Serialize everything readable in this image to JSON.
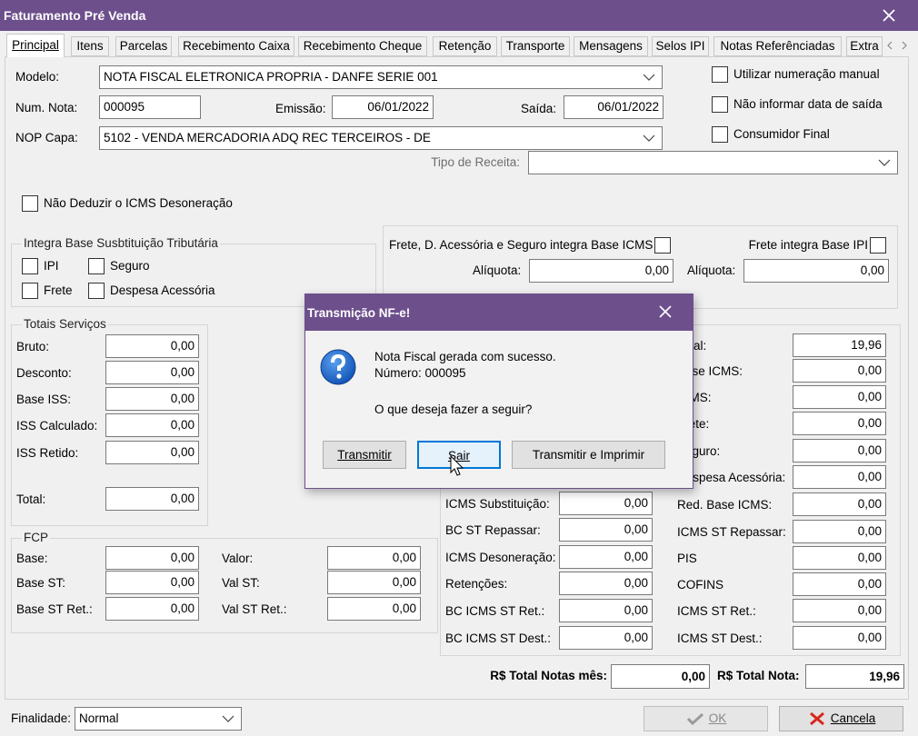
{
  "window": {
    "title": "Faturamento Pré Venda"
  },
  "tabs": [
    "Principal",
    "Itens",
    "Parcelas",
    "Recebimento Caixa",
    "Recebimento Cheque",
    "Retenção",
    "Transporte",
    "Mensagens",
    "Selos IPI",
    "Notas Referênciadas",
    "Extra"
  ],
  "form": {
    "modelo": {
      "label": "Modelo:",
      "value": "NOTA FISCAL ELETRONICA PROPRIA - DANFE SERIE 001"
    },
    "num_nota": {
      "label": "Num. Nota:",
      "value": "000095"
    },
    "emissao": {
      "label": "Emissão:",
      "value": "06/01/2022"
    },
    "saida": {
      "label": "Saída:",
      "value": "06/01/2022"
    },
    "nop_capa": {
      "label": "NOP Capa:",
      "value": "5102 - VENDA MERCADORIA ADQ REC TERCEIROS - DE"
    },
    "tipo_receita": {
      "label": "Tipo de Receita:"
    },
    "options": [
      "Utilizar numeração manual",
      "Não informar data de saída",
      "Consumidor Final"
    ],
    "nao_deduzir": "Não Deduzir o ICMS Desoneração"
  },
  "integra_st": {
    "title": "Integra Base Susbtituição Tributária",
    "options": [
      "IPI",
      "Seguro",
      "Frete",
      "Despesa Acessória"
    ]
  },
  "frete": {
    "icms_label": "Frete, D. Acessória e Seguro integra Base ICMS",
    "ipi_label": "Frete integra Base IPI",
    "aliquotas": [
      {
        "label": "Alíquota:",
        "value": "0,00"
      },
      {
        "label": "Alíquota:",
        "value": "0,00"
      }
    ]
  },
  "servicos": {
    "title": "Totais Serviços",
    "rows": [
      {
        "label": "Bruto:",
        "value": "0,00"
      },
      {
        "label": "Desconto:",
        "value": "0,00"
      },
      {
        "label": "Base ISS:",
        "value": "0,00"
      },
      {
        "label": "ISS Calculado:",
        "value": "0,00"
      },
      {
        "label": "ISS Retido:",
        "value": "0,00"
      },
      {
        "label": "Total:",
        "value": "0,00"
      }
    ]
  },
  "fcp": {
    "title": "FCP",
    "rows": [
      {
        "label": "Base:",
        "value": "0,00"
      },
      {
        "label": "Base ST:",
        "value": "0,00"
      },
      {
        "label": "Base ST Ret.:",
        "value": "0,00"
      },
      {
        "label": "Valor:",
        "value": "0,00"
      },
      {
        "label": "Val ST:",
        "value": "0,00"
      },
      {
        "label": "Val ST Ret.:",
        "value": "0,00"
      }
    ]
  },
  "totais": {
    "left": [
      {
        "label": "ICMS Substituição:",
        "value": "0,00"
      },
      {
        "label": "BC ST Repassar:",
        "value": "0,00"
      },
      {
        "label": "ICMS Desoneração:",
        "value": "0,00"
      },
      {
        "label": "Retenções:",
        "value": "0,00"
      },
      {
        "label": "BC ICMS ST Ret.:",
        "value": "0,00"
      },
      {
        "label": "BC ICMS ST Dest.:",
        "value": "0,00"
      }
    ],
    "right": [
      {
        "label": "Total:",
        "value": "19,96"
      },
      {
        "label": "Base ICMS:",
        "value": "0,00"
      },
      {
        "label": "ICMS:",
        "value": "0,00"
      },
      {
        "label": "Frete:",
        "value": "0,00"
      },
      {
        "label": "Seguro:",
        "value": "0,00"
      },
      {
        "label": "Despesa Acessória:",
        "value": "0,00"
      },
      {
        "label": "Red. Base ICMS:",
        "value": "0,00"
      },
      {
        "label": "ICMS ST Repassar:",
        "value": "0,00"
      },
      {
        "label": "PIS",
        "value": "0,00"
      },
      {
        "label": "COFINS",
        "value": "0,00"
      },
      {
        "label": "ICMS ST Ret.:",
        "value": "0,00"
      },
      {
        "label": "ICMS ST Dest.:",
        "value": "0,00"
      }
    ]
  },
  "footer": {
    "total_mes": {
      "label": "R$ Total Notas mês:",
      "value": "0,00"
    },
    "total_nota": {
      "label": "R$ Total Nota:",
      "value": "19,96"
    },
    "finalidade": {
      "label": "Finalidade:",
      "value": "Normal"
    },
    "buttons": [
      "OK",
      "Cancela"
    ]
  },
  "dialog": {
    "title": "Transmição NF-e!",
    "message": [
      "Nota Fiscal gerada com sucesso.",
      "Número: 000095"
    ],
    "question": "O que deseja fazer a seguir?",
    "buttons": [
      "Transmitir",
      "Sair",
      "Transmitir e Imprimir"
    ]
  }
}
